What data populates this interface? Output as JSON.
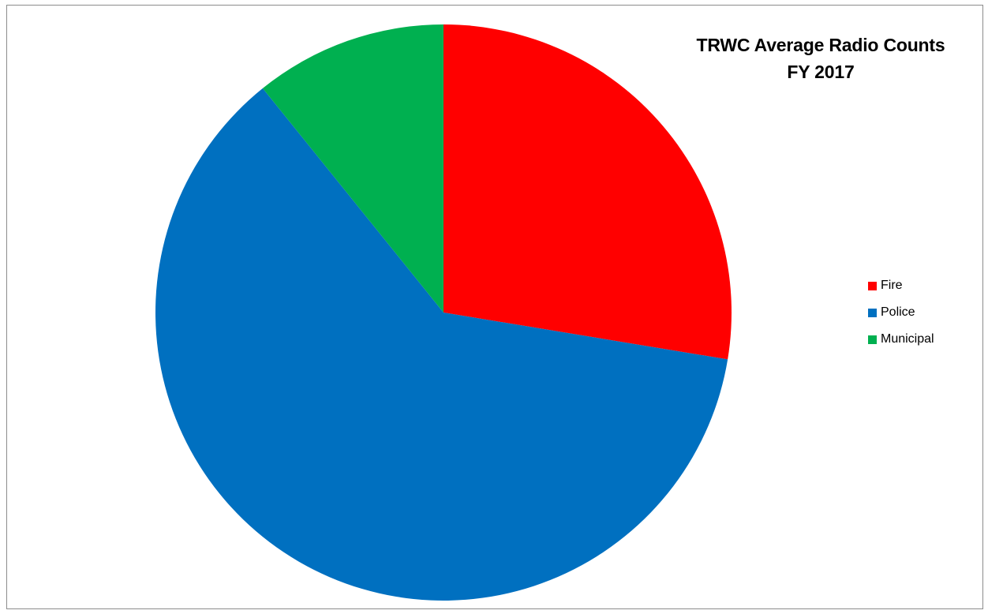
{
  "chart_data": {
    "type": "pie",
    "title_lines": [
      "TRWC Average Radio Counts",
      "FY 2017"
    ],
    "labels": [
      "Fire",
      "Police",
      "Municipal"
    ],
    "values": [
      27.6,
      61.6,
      10.8
    ],
    "colors": [
      "#ff0000",
      "#0070c0",
      "#00b050"
    ],
    "legend_position": "right",
    "start_angle": "top (12 o'clock), clockwise"
  }
}
